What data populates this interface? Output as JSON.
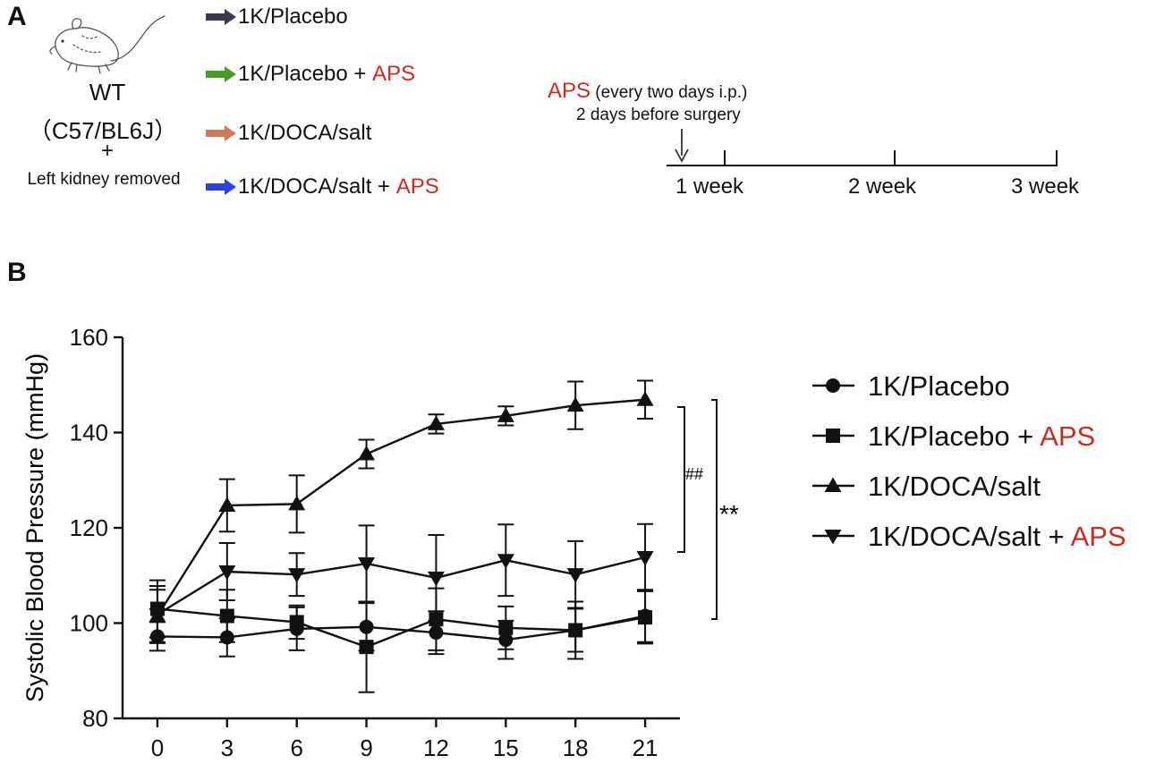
{
  "panel_a": {
    "letter": "A",
    "mouse": {
      "line1": "WT",
      "line2": "（C57/BL6J）",
      "plus": "+",
      "line3": "Left kidney removed"
    },
    "groups": [
      {
        "label": "1K/Placebo",
        "suffix": "",
        "arrow_color": "#3a3b4a"
      },
      {
        "label": "1K/Placebo + ",
        "suffix": "APS",
        "arrow_color": "#4b9b2a"
      },
      {
        "label": "1K/DOCA/salt",
        "suffix": "",
        "arrow_color": "#cf7a5c"
      },
      {
        "label": "1K/DOCA/salt + ",
        "suffix": "APS",
        "arrow_color": "#2e3fe8"
      }
    ],
    "timeline": {
      "aps": "APS",
      "aps_note": " (every two days i.p.)",
      "line2": "2 days before surgery",
      "weeks": [
        "1 week",
        "2 week",
        "3 week"
      ]
    }
  },
  "panel_b": {
    "letter": "B",
    "significance": {
      "hash": "##",
      "star": "**"
    }
  },
  "chart_data": {
    "type": "line",
    "title": "",
    "xlabel": "",
    "ylabel": "Systolic Blood Pressure (mmHg)",
    "x": [
      0,
      3,
      6,
      9,
      12,
      15,
      18,
      21
    ],
    "xlim": [
      -1.5,
      22.5
    ],
    "ylim": [
      80,
      160
    ],
    "yticks": [
      80,
      100,
      120,
      140,
      160
    ],
    "legend_position": "right",
    "series": [
      {
        "name": "1K/Placebo",
        "suffix": "",
        "marker": "circle",
        "values": [
          97.2,
          97.0,
          98.8,
          99.2,
          98.0,
          96.5,
          98.5,
          101.5
        ],
        "errors": [
          3.0,
          4.0,
          4.5,
          5.0,
          4.5,
          4.0,
          6.0,
          5.5
        ]
      },
      {
        "name": "1K/Placebo + ",
        "suffix": "APS",
        "marker": "square",
        "values": [
          103.0,
          101.5,
          100.2,
          95.0,
          100.8,
          99.0,
          98.5,
          101.2
        ],
        "errors": [
          6.0,
          5.5,
          3.5,
          9.5,
          6.5,
          4.5,
          4.5,
          5.5
        ]
      },
      {
        "name": "1K/DOCA/salt",
        "suffix": "",
        "marker": "triangle-up",
        "values": [
          101.5,
          124.7,
          125.0,
          135.5,
          141.8,
          143.5,
          145.7,
          146.9
        ],
        "errors": [
          5.5,
          5.5,
          6.0,
          3.0,
          2.0,
          2.0,
          5.0,
          4.0
        ]
      },
      {
        "name": "1K/DOCA/salt + ",
        "suffix": "APS",
        "marker": "triangle-down",
        "values": [
          101.8,
          110.8,
          110.2,
          112.5,
          109.5,
          113.2,
          110.2,
          113.8
        ],
        "errors": [
          6.0,
          6.0,
          4.5,
          8.0,
          9.0,
          7.5,
          7.0,
          7.0
        ]
      }
    ]
  }
}
